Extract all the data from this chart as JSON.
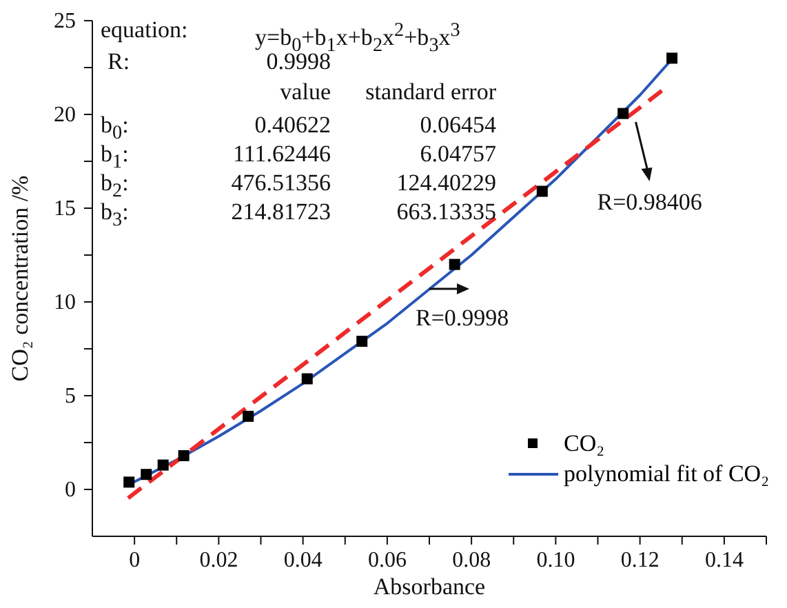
{
  "chart_data": {
    "type": "scatter",
    "xlabel": "Absorbance",
    "ylabel": "CO₂ concentration /%",
    "xlim": [
      -0.01,
      0.15
    ],
    "ylim": [
      -2.5,
      25
    ],
    "xticks": [
      0,
      {
        "value": 0.01,
        "label": null
      },
      0.02,
      {
        "value": 0.03,
        "label": null
      },
      0.04,
      {
        "value": 0.05,
        "label": null
      },
      0.06,
      {
        "value": 0.07,
        "label": null
      },
      0.08,
      {
        "value": 0.09,
        "label": null
      },
      {
        "value": 0.1,
        "label": "0.10"
      },
      {
        "value": 0.11,
        "label": null
      },
      0.12,
      {
        "value": 0.13,
        "label": null
      },
      0.14,
      {
        "value": 0.15,
        "label": null
      }
    ],
    "yticks": [
      0,
      {
        "value": 2.5,
        "label": null
      },
      5,
      {
        "value": 7.5,
        "label": null
      },
      10,
      {
        "value": 12.5,
        "label": null
      },
      15,
      {
        "value": 17.5,
        "label": null
      },
      20,
      {
        "value": 22.5,
        "label": null
      },
      25
    ],
    "legend": "bottom right",
    "grid": false,
    "marker": "square",
    "series": [
      {
        "name": "CO₂",
        "color": "#000000",
        "x": [
          -0.0013,
          0.0028,
          0.0068,
          0.0117,
          0.027,
          0.041,
          0.054,
          0.076,
          0.0968,
          0.116,
          0.1276
        ],
        "values": [
          0.39,
          0.8,
          1.3,
          1.8,
          3.9,
          5.9,
          7.9,
          12.0,
          15.9,
          20.05,
          23.0
        ]
      },
      {
        "type": "line",
        "name": "polynomial fit of CO₂",
        "color": "#2a56b8",
        "line_style": "solid",
        "marker": "none",
        "x": [
          -0.0013,
          0.01,
          0.02,
          0.03,
          0.04,
          0.06,
          0.08,
          0.1,
          0.12,
          0.1276
        ],
        "values": [
          0.26,
          1.57,
          2.83,
          4.19,
          5.65,
          8.86,
          12.5,
          16.55,
          21.03,
          22.95
        ]
      },
      {
        "type": "line",
        "color": "#ee2a2a",
        "line_style": "dashed",
        "marker": "none",
        "x": [
          -0.0015,
          0.126
        ],
        "values": [
          -0.46,
          21.4
        ]
      }
    ],
    "annotations": [
      "equation:",
      "y=b$_{0}$+b$_{1}$x+b$_{2}$x$^{2}$+b$_{3}$x$^{3}$",
      "R:",
      "0.9998",
      "value",
      "standard error",
      "b$_{0}$:",
      "0.40622",
      "0.06454",
      "b$_{1}$:",
      "111.62446",
      "6.04757",
      "b$_{2}$:",
      "476.51356",
      "124.40229",
      "b$_{3}$:",
      "214.81723",
      "663.13335",
      {
        "text": "R=0.9998",
        "x": 0.07,
        "y": 10.7
      },
      {
        "text": "R=0.98406",
        "x": 0.119,
        "y": 19.6
      }
    ]
  }
}
